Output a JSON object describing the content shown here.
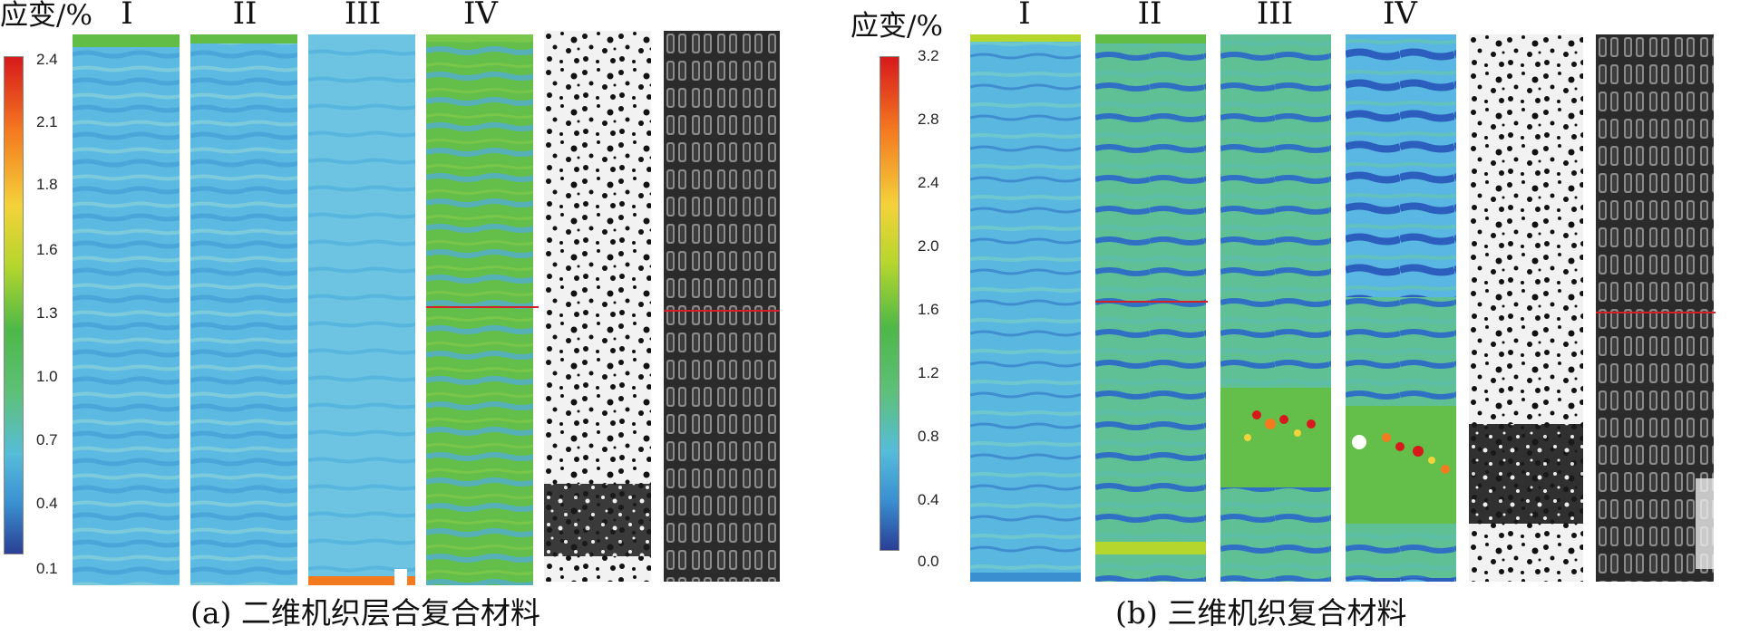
{
  "panel_a": {
    "unit_label": "应变/%",
    "ticks": [
      "2.4",
      "2.1",
      "1.8",
      "1.6",
      "1.3",
      "1.0",
      "0.7",
      "0.4",
      "0.1"
    ],
    "stages": [
      "I",
      "II",
      "III",
      "IV"
    ],
    "caption": "(a) 二维机织层合复合材料"
  },
  "panel_b": {
    "unit_label": "应变/%",
    "ticks": [
      "3.2",
      "2.8",
      "2.4",
      "2.0",
      "1.6",
      "1.2",
      "0.8",
      "0.4",
      "0.0"
    ],
    "stages": [
      "I",
      "II",
      "III",
      "IV"
    ],
    "caption": "(b) 三维机织复合材料"
  },
  "colors": {
    "colorbar": [
      "#d7191c",
      "#f47a20",
      "#f4d23a",
      "#b5d62d",
      "#4db848",
      "#5ec07a",
      "#56bcd9",
      "#3a8fd1",
      "#2a3f95"
    ],
    "strain_low_blue": "#5bb9e0",
    "strain_mid_green": "#62bd47",
    "fracture_line": "#d61f26"
  }
}
